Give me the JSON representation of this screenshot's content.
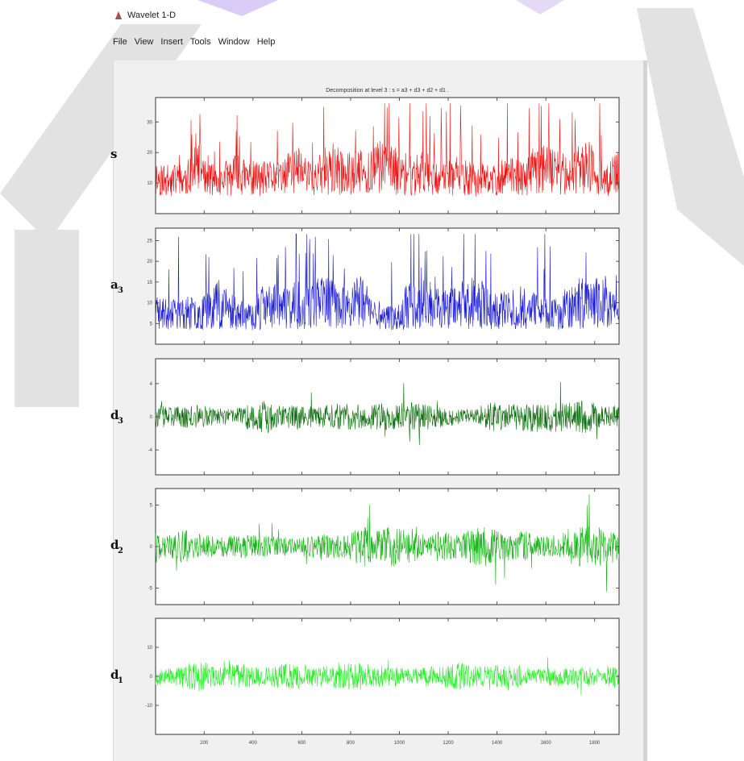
{
  "window": {
    "title": "Wavelet 1-D"
  },
  "menu": [
    "File",
    "View",
    "Insert",
    "Tools",
    "Window",
    "Help"
  ],
  "colors": {
    "s": "#ee1111",
    "a3": "#1a1ad6",
    "d3": "#0b6e0b",
    "d2": "#13b313",
    "d1": "#22ee22",
    "watermark": "#e2e2e2",
    "figure_bg": "#f0f0f0"
  },
  "chart_data": {
    "type": "line",
    "title": "Decomposition at level 3 : s = a3 + d3 + d2 + d1 .",
    "x": {
      "range": [
        1,
        1900
      ],
      "ticks": [
        200,
        400,
        600,
        800,
        1000,
        1200,
        1400,
        1600,
        1800
      ]
    },
    "panels": [
      {
        "label": "s",
        "sub": "",
        "ylim": [
          0,
          38
        ],
        "yticks": [
          10,
          20,
          30
        ],
        "baseline": 0,
        "color": "#ee1111",
        "seed": 11,
        "kind": "positive",
        "mean": 9,
        "spread": 12
      },
      {
        "label": "a",
        "sub": "3",
        "ylim": [
          0,
          28
        ],
        "yticks": [
          5,
          10,
          15,
          20,
          25
        ],
        "baseline": 0,
        "color": "#1a1ad6",
        "seed": 23,
        "kind": "positive",
        "mean": 6,
        "spread": 9
      },
      {
        "label": "d",
        "sub": "3",
        "ylim": [
          -7,
          7
        ],
        "yticks": [
          -4,
          0,
          4
        ],
        "baseline": 0,
        "color": "#0b6e0b",
        "seed": 37,
        "kind": "symmetric",
        "mean": 0,
        "spread": 1.4
      },
      {
        "label": "d",
        "sub": "2",
        "ylim": [
          -7,
          7
        ],
        "yticks": [
          -5,
          0,
          5
        ],
        "baseline": 0,
        "color": "#13b313",
        "seed": 41,
        "kind": "symmetric",
        "mean": 0,
        "spread": 1.6
      },
      {
        "label": "d",
        "sub": "1",
        "ylim": [
          -20,
          20
        ],
        "yticks": [
          -10,
          0,
          10
        ],
        "baseline": 0,
        "color": "#22ee22",
        "seed": 53,
        "kind": "symmetric",
        "mean": 0,
        "spread": 3.5
      }
    ]
  }
}
